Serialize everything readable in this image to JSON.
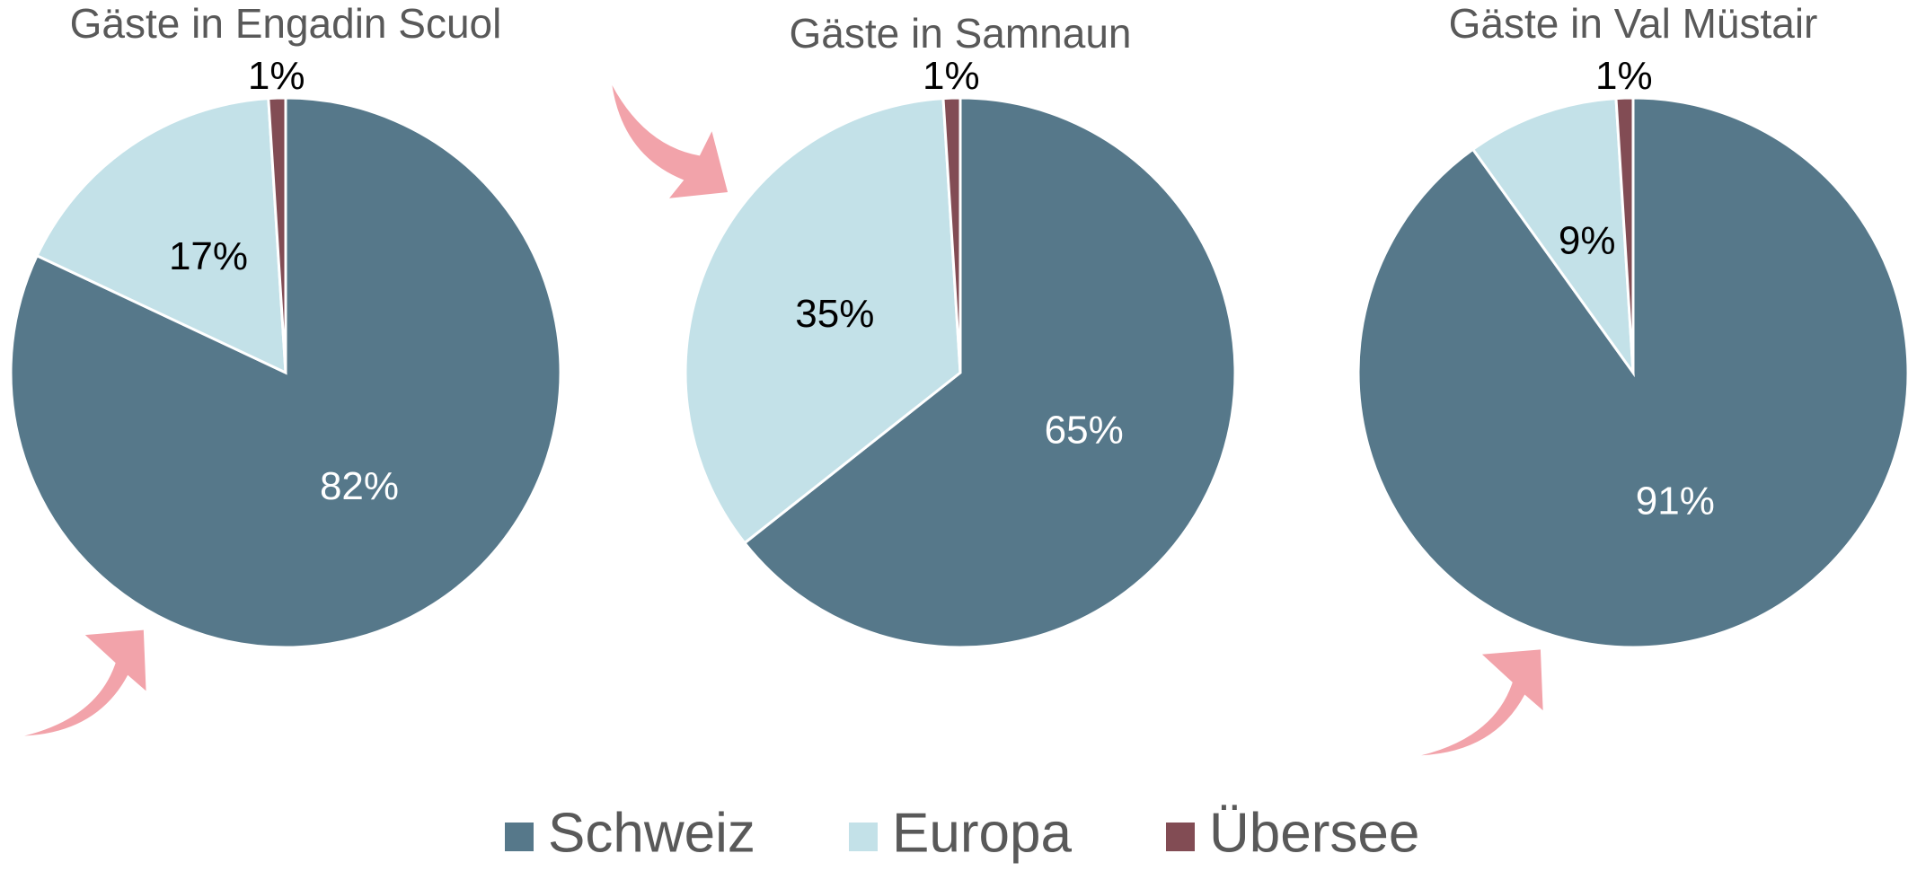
{
  "chart_data": [
    {
      "type": "pie",
      "title": "Gäste in Engadin Scuol",
      "categories": [
        "Schweiz",
        "Europa",
        "Übersee"
      ],
      "values": [
        82,
        17,
        1
      ],
      "value_labels": [
        "82%",
        "17%",
        "1%"
      ],
      "colors": [
        "#56788a",
        "#c3e1e8",
        "#824c54"
      ]
    },
    {
      "type": "pie",
      "title": "Gäste in Samnaun",
      "categories": [
        "Schweiz",
        "Europa",
        "Übersee"
      ],
      "values": [
        65,
        35,
        1
      ],
      "value_labels": [
        "65%",
        "35%",
        "1%"
      ],
      "colors": [
        "#56788a",
        "#c3e1e8",
        "#824c54"
      ]
    },
    {
      "type": "pie",
      "title": "Gäste in Val Müstair",
      "categories": [
        "Schweiz",
        "Europa",
        "Übersee"
      ],
      "values": [
        91,
        9,
        1
      ],
      "value_labels": [
        "91%",
        "9%",
        "1%"
      ],
      "colors": [
        "#56788a",
        "#c3e1e8",
        "#824c54"
      ]
    }
  ]
}
